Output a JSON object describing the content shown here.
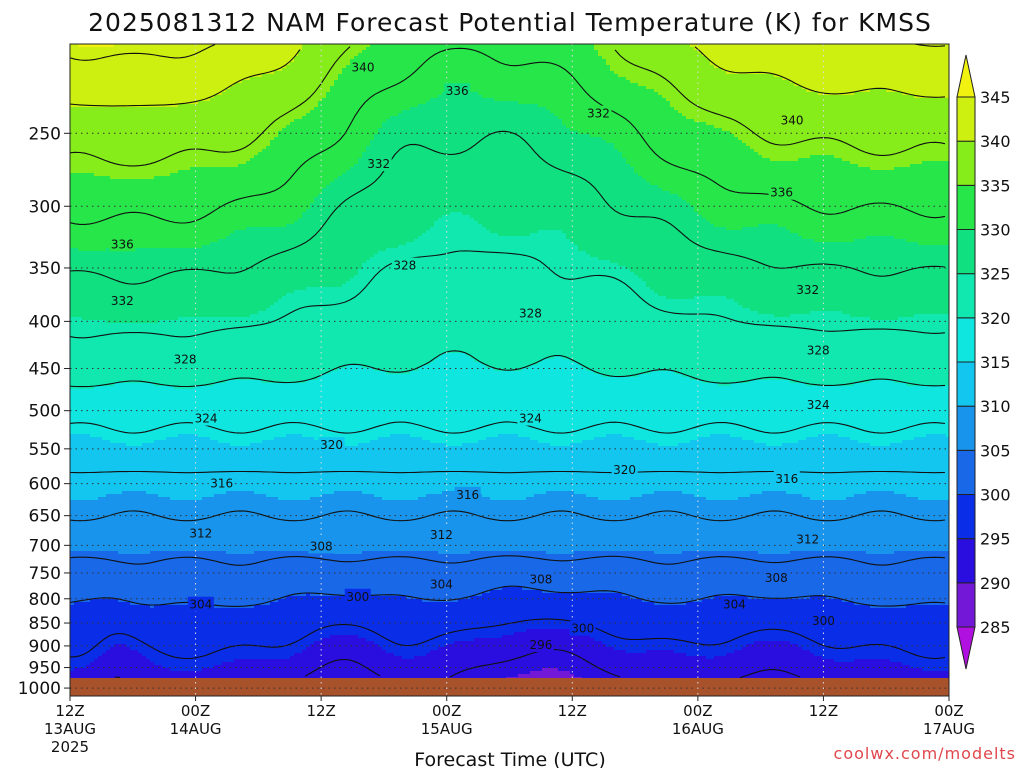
{
  "chart_data": {
    "type": "heatmap",
    "title": "2025081312 NAM Forecast Potential Temperature (K) for KMSS",
    "xlabel": "Forecast Time (UTC)",
    "ylabel": "",
    "x_ticks": [
      {
        "hour": 0,
        "line1": "12Z",
        "line2": "13AUG",
        "line3": "2025"
      },
      {
        "hour": 12,
        "line1": "00Z",
        "line2": "14AUG",
        "line3": ""
      },
      {
        "hour": 24,
        "line1": "12Z",
        "line2": "",
        "line3": ""
      },
      {
        "hour": 36,
        "line1": "00Z",
        "line2": "15AUG",
        "line3": ""
      },
      {
        "hour": 48,
        "line1": "12Z",
        "line2": "",
        "line3": ""
      },
      {
        "hour": 60,
        "line1": "00Z",
        "line2": "16AUG",
        "line3": ""
      },
      {
        "hour": 72,
        "line1": "12Z",
        "line2": "",
        "line3": ""
      },
      {
        "hour": 84,
        "line1": "00Z",
        "line2": "17AUG",
        "line3": ""
      }
    ],
    "xlim_hours": [
      0,
      84
    ],
    "y_ticks": [
      250,
      300,
      350,
      400,
      450,
      500,
      550,
      600,
      650,
      700,
      750,
      800,
      850,
      900,
      950,
      1000
    ],
    "ylim_hpa": [
      200,
      1020
    ],
    "y_scale": "log (pressure)",
    "grid": true,
    "colorbar": {
      "levels": [
        285,
        290,
        295,
        300,
        305,
        310,
        315,
        320,
        325,
        330,
        335,
        340,
        345
      ],
      "colors": [
        "#b010e0",
        "#7418d8",
        "#2a0ee0",
        "#0a2ee8",
        "#1868e8",
        "#1894ec",
        "#12c6f0",
        "#10e6e0",
        "#10e8b0",
        "#10e080",
        "#26e64a",
        "#86ec1a",
        "#cef010",
        "#f2f210"
      ]
    },
    "contour_labels": [
      {
        "text": "340",
        "hour": 28.0,
        "p": 212
      },
      {
        "text": "336",
        "hour": 37.0,
        "p": 225
      },
      {
        "text": "332",
        "hour": 50.5,
        "p": 238
      },
      {
        "text": "340",
        "hour": 69.0,
        "p": 242
      },
      {
        "text": "332",
        "hour": 29.5,
        "p": 270
      },
      {
        "text": "336",
        "hour": 68.0,
        "p": 290
      },
      {
        "text": "336",
        "hour": 5.0,
        "p": 330
      },
      {
        "text": "328",
        "hour": 32.0,
        "p": 348
      },
      {
        "text": "332",
        "hour": 5.0,
        "p": 380
      },
      {
        "text": "332",
        "hour": 70.5,
        "p": 370
      },
      {
        "text": "328",
        "hour": 44.0,
        "p": 392
      },
      {
        "text": "328",
        "hour": 11.0,
        "p": 440
      },
      {
        "text": "328",
        "hour": 71.5,
        "p": 430
      },
      {
        "text": "324",
        "hour": 13.0,
        "p": 510
      },
      {
        "text": "324",
        "hour": 44.0,
        "p": 510
      },
      {
        "text": "324",
        "hour": 71.5,
        "p": 493
      },
      {
        "text": "320",
        "hour": 25.0,
        "p": 545
      },
      {
        "text": "320",
        "hour": 53.0,
        "p": 580
      },
      {
        "text": "316",
        "hour": 14.5,
        "p": 600
      },
      {
        "text": "316",
        "hour": 38.0,
        "p": 617
      },
      {
        "text": "316",
        "hour": 68.5,
        "p": 593
      },
      {
        "text": "312",
        "hour": 12.5,
        "p": 680
      },
      {
        "text": "312",
        "hour": 35.5,
        "p": 682
      },
      {
        "text": "312",
        "hour": 70.5,
        "p": 690
      },
      {
        "text": "308",
        "hour": 24.0,
        "p": 702
      },
      {
        "text": "308",
        "hour": 45.0,
        "p": 762
      },
      {
        "text": "308",
        "hour": 67.5,
        "p": 760
      },
      {
        "text": "304",
        "hour": 12.5,
        "p": 812
      },
      {
        "text": "304",
        "hour": 35.5,
        "p": 772
      },
      {
        "text": "304",
        "hour": 63.5,
        "p": 812
      },
      {
        "text": "300",
        "hour": 27.5,
        "p": 796
      },
      {
        "text": "300",
        "hour": 49.0,
        "p": 862
      },
      {
        "text": "300",
        "hour": 72.0,
        "p": 846
      },
      {
        "text": "296",
        "hour": 45.0,
        "p": 898
      }
    ],
    "credit": "coolwx.com/modelts"
  }
}
